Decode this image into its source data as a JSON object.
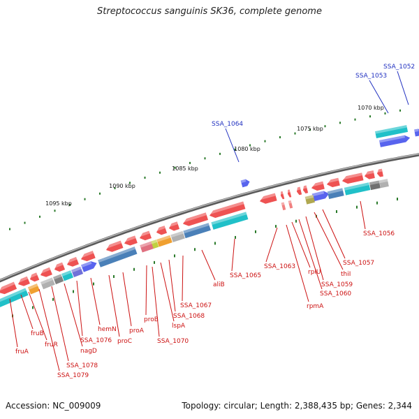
{
  "title": "Streptococcus sanguinis SK36, complete genome",
  "footer": {
    "accession": "Accession: NC_009009",
    "topology": "Topology: circular; Length: 2,388,435 bp; Genes: 2,344"
  },
  "scale_labels": [
    "1070 kbp",
    "1075 kbp",
    "1080 kbp",
    "1085 kbp",
    "1090 kbp",
    "1095 kbp"
  ],
  "top_labels": [
    "SSA_1052",
    "SSA_1053",
    "SSA_1064"
  ],
  "bottom_labels": [
    "SSA_1056",
    "SSA_1057",
    "thiI",
    "SSA_1059",
    "SSA_1060",
    "rplU",
    "rpmA",
    "SSA_1063",
    "SSA_1065",
    "aliB",
    "SSA_1067",
    "SSA_1068",
    "lspA",
    "proB",
    "SSA_1070",
    "proA",
    "proC",
    "hemN",
    "SSA_1076",
    "nagD",
    "SSA_1078",
    "SSA_1079",
    "fruR",
    "fruB",
    "fruA"
  ],
  "colors": {
    "gene_forward": "#2030e8",
    "gene_reverse": "#e81818",
    "label_forward": "#2030c0",
    "label_reverse": "#cc1010",
    "backbone": "#808080",
    "ticks": "#2a7a2a",
    "cog_cyan": "#20c0c8",
    "cog_steel": "#4a80b8",
    "cog_orange": "#f0a030",
    "cog_pink": "#e07080",
    "cog_olive": "#b0a850",
    "cog_gray": "#b0b0b0",
    "cog_violet": "#7070d8"
  }
}
